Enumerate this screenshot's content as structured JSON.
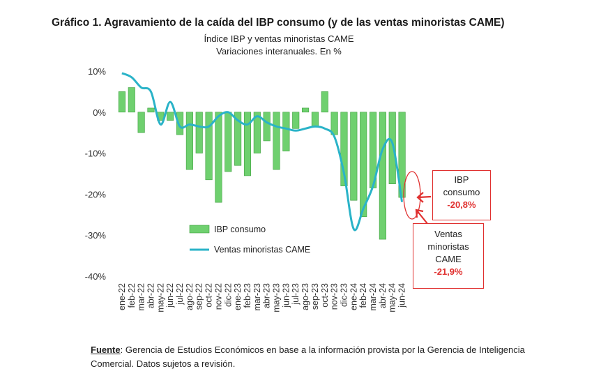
{
  "title": "Gráfico 1. Agravamiento de la caída del IBP consumo (y de las ventas minoristas CAME)",
  "subtitle_1": "Índice IBP y ventas minoristas CAME",
  "subtitle_2": "Variaciones interanuales. En %",
  "source_label": "Fuente",
  "source_text": ": Gerencia de Estudios Económicos en base a la información provista por la Gerencia de Inteligencia Comercial. Datos sujetos a revisión.",
  "callout_ibp": {
    "line1": "IBP",
    "line2": "consumo",
    "value": "-20,8%"
  },
  "callout_came": {
    "line1": "Ventas",
    "line2": "minoristas",
    "line3": "CAME",
    "value": "-21,9%"
  },
  "colors": {
    "bar": "#6fd06f",
    "bar_edge": "#3e9e3e",
    "line": "#2ab3c8",
    "accent": "#e0302f"
  },
  "chart_data": {
    "type": "bar",
    "ylim": [
      -40,
      10
    ],
    "y_ticks": [
      "10%",
      "0%",
      "-10%",
      "-20%",
      "-30%",
      "-40%"
    ],
    "y_tick_values": [
      10,
      0,
      -10,
      -20,
      -30,
      -40
    ],
    "categories": [
      "ene-22",
      "feb-22",
      "mar-22",
      "abr-22",
      "may-22",
      "jun-22",
      "jul-22",
      "ago-22",
      "sep-22",
      "oct-22",
      "nov-22",
      "dic-22",
      "ene-23",
      "feb-23",
      "mar-23",
      "abr-23",
      "may-23",
      "jun-23",
      "jul-23",
      "ago-23",
      "sep-23",
      "oct-23",
      "nov-23",
      "dic-23",
      "ene-24",
      "feb-24",
      "mar-24",
      "abr-24",
      "may-24",
      "jun-24"
    ],
    "series": [
      {
        "name": "IBP consumo",
        "kind": "bar",
        "values": [
          5,
          6,
          -5,
          1,
          -2,
          -2,
          -5.5,
          -14,
          -10,
          -16.5,
          -22,
          -14.5,
          -13,
          -15.5,
          -10,
          -7,
          -14,
          -9.5,
          -4,
          1,
          -3.5,
          5,
          -5.5,
          -18,
          -21.5,
          -25.5,
          -18.5,
          -31,
          -17.5,
          -20.8
        ]
      },
      {
        "name": "Ventas minoristas CAME",
        "kind": "line",
        "values": [
          9.5,
          8.5,
          6,
          5,
          -3,
          2.5,
          -3.5,
          -3,
          -3.5,
          -3.5,
          -1,
          0,
          -2,
          -3,
          -1,
          -2.5,
          -3.5,
          -4,
          -4.5,
          -4,
          -3.5,
          -4,
          -6,
          -15,
          -28.5,
          -23.5,
          -18,
          -9,
          -7.5,
          -21.9
        ]
      }
    ],
    "legend_position": "bottom-left",
    "grid": false
  }
}
